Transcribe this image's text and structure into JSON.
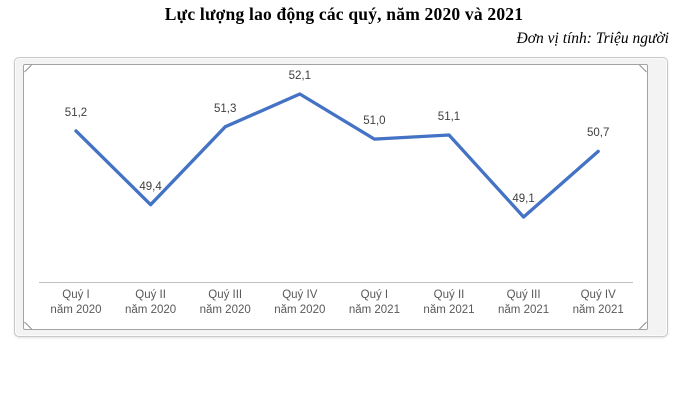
{
  "page": {
    "title": "Lực lượng lao động các quý, năm 2020 và 2021",
    "unit_label": "Đơn vị tính: Triệu người"
  },
  "chart_data": {
    "type": "line",
    "title": "Lực lượng lao động các quý, năm 2020 và 2021",
    "unit": "Triệu người",
    "categories": [
      "Quý I năm 2020",
      "Quý II năm 2020",
      "Quý III năm 2020",
      "Quý IV năm 2020",
      "Quý I năm 2021",
      "Quý II năm 2021",
      "Quý III năm 2021",
      "Quý IV năm 2021"
    ],
    "categories_lines": [
      [
        "Quý I",
        "năm 2020"
      ],
      [
        "Quý II",
        "năm 2020"
      ],
      [
        "Quý III",
        "năm 2020"
      ],
      [
        "Quý IV",
        "năm 2020"
      ],
      [
        "Quý I",
        "năm 2021"
      ],
      [
        "Quý II",
        "năm 2021"
      ],
      [
        "Quý III",
        "năm 2021"
      ],
      [
        "Quý IV",
        "năm 2021"
      ]
    ],
    "values": [
      51.2,
      49.4,
      51.3,
      52.1,
      51.0,
      51.1,
      49.1,
      50.7
    ],
    "value_labels": [
      "51,2",
      "49,4",
      "51,3",
      "52,1",
      "51,0",
      "51,1",
      "49,1",
      "50,7"
    ],
    "xlabel": "",
    "ylabel": "",
    "ylim": [
      47.5,
      52.9
    ],
    "grid": false,
    "legend": "none",
    "data_labels_position": "above",
    "colors": {
      "line": "#4472C4",
      "data_label": "#3F3F3F",
      "axis_label": "#595959",
      "axis_line": "#C2C2C2"
    }
  }
}
